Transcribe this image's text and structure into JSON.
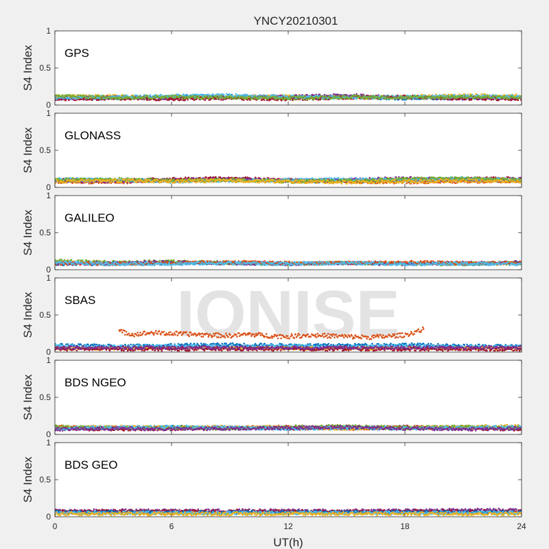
{
  "chart_data": {
    "type": "scatter",
    "title": "YNCY20210301",
    "xlabel": "UT(h)",
    "ylabel": "S4 Index",
    "xlim": [
      0,
      24
    ],
    "ylim": [
      0,
      1
    ],
    "xticks": [
      0,
      6,
      12,
      18,
      24
    ],
    "yticks": [
      0,
      0.5,
      1
    ],
    "grid": false,
    "watermark": "IONISE",
    "colors": {
      "figure_bg": "#f0f0f0",
      "axes_bg": "#ffffff",
      "series_palette": [
        "#0072bd",
        "#d95319",
        "#edb120",
        "#7e2f8e",
        "#77ac30",
        "#4dbeee",
        "#a2142f"
      ]
    },
    "panels": [
      {
        "label": "GPS",
        "series": [
          {
            "color": "#0072bd",
            "x": [
              0,
              3,
              6,
              9,
              12,
              15,
              18,
              21,
              24
            ],
            "y": [
              0.1,
              0.09,
              0.11,
              0.12,
              0.1,
              0.11,
              0.09,
              0.1,
              0.11
            ]
          },
          {
            "color": "#edb120",
            "x": [
              0,
              3,
              6,
              9,
              12,
              15,
              18,
              21,
              24
            ],
            "y": [
              0.11,
              0.12,
              0.1,
              0.11,
              0.12,
              0.1,
              0.11,
              0.13,
              0.12
            ]
          },
          {
            "color": "#7e2f8e",
            "x": [
              0,
              3,
              6,
              9,
              12,
              15,
              18,
              21,
              24
            ],
            "y": [
              0.09,
              0.1,
              0.09,
              0.1,
              0.11,
              0.13,
              0.1,
              0.09,
              0.1
            ]
          },
          {
            "color": "#a2142f",
            "x": [
              0,
              3,
              6,
              9,
              12,
              15,
              18,
              21,
              24
            ],
            "y": [
              0.08,
              0.09,
              0.08,
              0.09,
              0.08,
              0.1,
              0.11,
              0.09,
              0.08
            ]
          },
          {
            "color": "#4dbeee",
            "x": [
              0,
              3,
              6,
              9,
              12,
              15,
              18,
              21,
              24
            ],
            "y": [
              0.1,
              0.11,
              0.12,
              0.13,
              0.11,
              0.1,
              0.11,
              0.12,
              0.11
            ]
          },
          {
            "color": "#77ac30",
            "x": [
              0,
              3,
              6,
              9,
              12,
              15,
              18,
              21,
              24
            ],
            "y": [
              0.12,
              0.1,
              0.11,
              0.1,
              0.09,
              0.11,
              0.1,
              0.11,
              0.1
            ]
          }
        ]
      },
      {
        "label": "GLONASS",
        "series": [
          {
            "color": "#0072bd",
            "x": [
              0,
              3,
              6,
              9,
              12,
              15,
              18,
              21,
              24
            ],
            "y": [
              0.09,
              0.1,
              0.09,
              0.1,
              0.09,
              0.08,
              0.09,
              0.1,
              0.09
            ]
          },
          {
            "color": "#d95319",
            "x": [
              0,
              3,
              6,
              9,
              12,
              15,
              18,
              21,
              24
            ],
            "y": [
              0.08,
              0.07,
              0.09,
              0.1,
              0.09,
              0.08,
              0.07,
              0.08,
              0.09
            ]
          },
          {
            "color": "#a2142f",
            "x": [
              0,
              3,
              6,
              9,
              12,
              15,
              18,
              21,
              24
            ],
            "y": [
              0.1,
              0.09,
              0.11,
              0.12,
              0.1,
              0.09,
              0.1,
              0.11,
              0.12
            ]
          },
          {
            "color": "#7e2f8e",
            "x": [
              0,
              3,
              6,
              9,
              12,
              15,
              18,
              21,
              24
            ],
            "y": [
              0.09,
              0.08,
              0.1,
              0.11,
              0.09,
              0.1,
              0.12,
              0.1,
              0.11
            ]
          },
          {
            "color": "#4dbeee",
            "x": [
              0,
              3,
              6,
              9,
              12,
              15,
              18,
              21,
              24
            ],
            "y": [
              0.11,
              0.1,
              0.08,
              0.09,
              0.1,
              0.11,
              0.1,
              0.12,
              0.1
            ]
          },
          {
            "color": "#77ac30",
            "x": [
              0,
              3,
              6,
              9,
              12,
              15,
              18,
              21,
              24
            ],
            "y": [
              0.1,
              0.11,
              0.09,
              0.1,
              0.08,
              0.09,
              0.11,
              0.12,
              0.1
            ]
          },
          {
            "color": "#edb120",
            "x": [
              0,
              3,
              6,
              9,
              12,
              15,
              18,
              21,
              24
            ],
            "y": [
              0.08,
              0.09,
              0.08,
              0.09,
              0.08,
              0.07,
              0.08,
              0.09,
              0.08
            ]
          }
        ]
      },
      {
        "label": "GALILEO",
        "series": [
          {
            "color": "#0072bd",
            "x": [
              0,
              3,
              6,
              9,
              12,
              15,
              18,
              21,
              24
            ],
            "y": [
              0.08,
              0.08,
              0.09,
              0.09,
              0.08,
              0.09,
              0.08,
              0.08,
              0.09
            ]
          },
          {
            "color": "#77ac30",
            "x": [
              0,
              3,
              6,
              9,
              12,
              15,
              18,
              21,
              24
            ],
            "y": [
              0.12,
              0.1,
              0.11,
              0.09,
              0.08,
              0.09,
              0.08,
              0.08,
              0.09
            ]
          },
          {
            "color": "#7e2f8e",
            "x": [
              0,
              3,
              6,
              9,
              12,
              15,
              18,
              21,
              24
            ],
            "y": [
              0.08,
              0.09,
              0.1,
              0.09,
              0.08,
              0.09,
              0.08,
              0.09,
              0.1
            ]
          },
          {
            "color": "#d95319",
            "x": [
              0,
              3,
              6,
              9,
              12,
              15,
              18,
              21,
              24
            ],
            "y": [
              0.09,
              0.08,
              0.09,
              0.1,
              0.09,
              0.09,
              0.1,
              0.09,
              0.09
            ]
          },
          {
            "color": "#4dbeee",
            "x": [
              0,
              3,
              6,
              9,
              12,
              15,
              18,
              21,
              24
            ],
            "y": [
              0.09,
              0.08,
              0.08,
              0.09,
              0.08,
              0.09,
              0.08,
              0.08,
              0.08
            ]
          }
        ]
      },
      {
        "label": "SBAS",
        "series": [
          {
            "color": "#d95319",
            "x": [
              3.3,
              4,
              5,
              6,
              7,
              8,
              9,
              10,
              11,
              12,
              13,
              14,
              15,
              16,
              17,
              18,
              19
            ],
            "y": [
              0.28,
              0.24,
              0.26,
              0.25,
              0.24,
              0.23,
              0.22,
              0.24,
              0.22,
              0.21,
              0.23,
              0.22,
              0.21,
              0.2,
              0.21,
              0.23,
              0.31
            ]
          },
          {
            "color": "#0072bd",
            "x": [
              0,
              3,
              6,
              9,
              12,
              15,
              18,
              21,
              24
            ],
            "y": [
              0.09,
              0.08,
              0.09,
              0.1,
              0.09,
              0.09,
              0.1,
              0.08,
              0.08
            ]
          },
          {
            "color": "#4dbeee",
            "x": [
              0,
              3,
              6,
              9,
              12,
              15,
              18,
              21,
              24
            ],
            "y": [
              0.08,
              0.07,
              0.08,
              0.07,
              0.08,
              0.07,
              0.08,
              0.07,
              0.07
            ]
          },
          {
            "color": "#edb120",
            "x": [
              0,
              3,
              6,
              9,
              12,
              15,
              18,
              21,
              24
            ],
            "y": [
              0.05,
              0.05,
              0.05,
              0.05,
              0.05,
              0.05,
              0.05,
              0.05,
              0.05
            ]
          },
          {
            "color": "#a2142f",
            "x": [
              0,
              3,
              6,
              9,
              12,
              15,
              18,
              21,
              24
            ],
            "y": [
              0.04,
              0.04,
              0.04,
              0.04,
              0.04,
              0.04,
              0.04,
              0.04,
              0.04
            ]
          },
          {
            "color": "#7e2f8e",
            "x": [
              0,
              3,
              6,
              9,
              12,
              15,
              18,
              21,
              24
            ],
            "y": [
              0.06,
              0.06,
              0.06,
              0.06,
              0.06,
              0.06,
              0.06,
              0.06,
              0.06
            ]
          }
        ]
      },
      {
        "label": "BDS NGEO",
        "series": [
          {
            "color": "#0072bd",
            "x": [
              0,
              3,
              6,
              9,
              12,
              15,
              18,
              21,
              24
            ],
            "y": [
              0.09,
              0.08,
              0.1,
              0.09,
              0.08,
              0.09,
              0.08,
              0.09,
              0.08
            ]
          },
          {
            "color": "#d95319",
            "x": [
              0,
              3,
              6,
              9,
              12,
              15,
              18,
              21,
              24
            ],
            "y": [
              0.1,
              0.09,
              0.08,
              0.09,
              0.1,
              0.08,
              0.09,
              0.08,
              0.09
            ]
          },
          {
            "color": "#a2142f",
            "x": [
              0,
              3,
              6,
              9,
              12,
              15,
              18,
              21,
              24
            ],
            "y": [
              0.08,
              0.07,
              0.08,
              0.09,
              0.08,
              0.09,
              0.1,
              0.08,
              0.07
            ]
          },
          {
            "color": "#edb120",
            "x": [
              0,
              3,
              6,
              9,
              12,
              15,
              18,
              21,
              24
            ],
            "y": [
              0.09,
              0.1,
              0.09,
              0.1,
              0.09,
              0.08,
              0.09,
              0.1,
              0.11
            ]
          },
          {
            "color": "#77ac30",
            "x": [
              0,
              3,
              6,
              9,
              12,
              15,
              18,
              21,
              24
            ],
            "y": [
              0.1,
              0.09,
              0.09,
              0.08,
              0.1,
              0.11,
              0.09,
              0.1,
              0.09
            ]
          },
          {
            "color": "#4dbeee",
            "x": [
              0,
              3,
              6,
              9,
              12,
              15,
              18,
              21,
              24
            ],
            "y": [
              0.08,
              0.09,
              0.1,
              0.09,
              0.08,
              0.09,
              0.08,
              0.09,
              0.1
            ]
          },
          {
            "color": "#7e2f8e",
            "x": [
              0,
              3,
              6,
              9,
              12,
              15,
              18,
              21,
              24
            ],
            "y": [
              0.07,
              0.08,
              0.07,
              0.08,
              0.09,
              0.1,
              0.08,
              0.07,
              0.08
            ]
          }
        ]
      },
      {
        "label": "BDS GEO",
        "series": [
          {
            "color": "#7e2f8e",
            "x": [
              0,
              3,
              6,
              9,
              12,
              15,
              18,
              21,
              24
            ],
            "y": [
              0.08,
              0.08,
              0.08,
              0.08,
              0.08,
              0.08,
              0.08,
              0.09,
              0.09
            ]
          },
          {
            "color": "#a2142f",
            "x": [
              0,
              3,
              6,
              9,
              12,
              15,
              18,
              21,
              24
            ],
            "y": [
              0.07,
              0.07,
              0.07,
              0.07,
              0.07,
              0.07,
              0.07,
              0.07,
              0.07
            ]
          },
          {
            "color": "#0072bd",
            "x": [
              0,
              3,
              6,
              9,
              12,
              15,
              18,
              21,
              24
            ],
            "y": [
              0.06,
              0.06,
              0.06,
              0.06,
              0.06,
              0.06,
              0.06,
              0.06,
              0.06
            ]
          },
          {
            "color": "#4dbeee",
            "x": [
              0,
              3,
              6,
              9,
              12,
              15,
              18,
              21,
              24
            ],
            "y": [
              0.05,
              0.05,
              0.05,
              0.05,
              0.05,
              0.05,
              0.05,
              0.05,
              0.05
            ]
          },
          {
            "color": "#edb120",
            "x": [
              0,
              3,
              6,
              9,
              12,
              15,
              18,
              21,
              24
            ],
            "y": [
              0.04,
              0.04,
              0.04,
              0.04,
              0.04,
              0.04,
              0.04,
              0.04,
              0.04
            ]
          }
        ]
      }
    ]
  }
}
